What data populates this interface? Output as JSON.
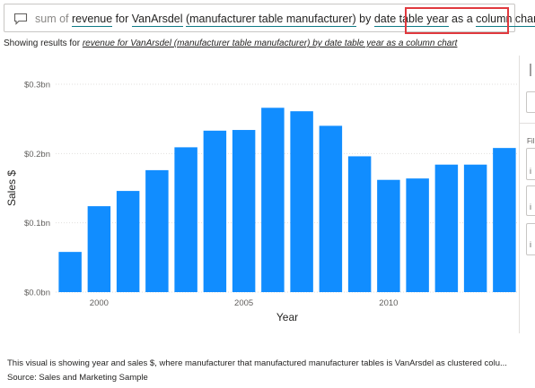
{
  "qna": {
    "tokens": [
      {
        "text": "sum of",
        "style": "muted"
      },
      {
        "text": "revenue",
        "style": "term"
      },
      {
        "text": "for",
        "style": "plain"
      },
      {
        "text": "VanArsdel",
        "style": "term"
      },
      {
        "text": "(manufacturer table manufacturer)",
        "style": "term"
      },
      {
        "text": "by",
        "style": "plain"
      },
      {
        "text": "date table year",
        "style": "term"
      },
      {
        "text": "as a",
        "style": "plain"
      },
      {
        "text": "column chart",
        "style": "term"
      }
    ],
    "icon": "chat-bubble-icon",
    "highlight_color": "#e0393e",
    "term_underline_color": "#0f7b86"
  },
  "showing": {
    "prefix": "Showing results for ",
    "link": "revenue for VanArsdel (manufacturer table manufacturer) by date table year as a column chart"
  },
  "chart_data": {
    "type": "bar",
    "x": [
      1999,
      2000,
      2001,
      2002,
      2003,
      2004,
      2005,
      2006,
      2007,
      2008,
      2009,
      2010,
      2011,
      2012,
      2013,
      2014
    ],
    "values": [
      0.058,
      0.124,
      0.146,
      0.176,
      0.209,
      0.233,
      0.234,
      0.266,
      0.261,
      0.24,
      0.196,
      0.162,
      0.164,
      0.184,
      0.184,
      0.208
    ],
    "xlabel": "Year",
    "ylabel": "Sales $",
    "ylim": [
      0,
      0.3
    ],
    "yticks": [
      0,
      0.1,
      0.2,
      0.3
    ],
    "ytick_labels": [
      "$0.0bn",
      "$0.1bn",
      "$0.2bn",
      "$0.3bn"
    ],
    "xticks": [
      2000,
      2005,
      2010
    ],
    "xtick_labels": [
      "2000",
      "2005",
      "2010"
    ],
    "bar_color": "#118dff",
    "grid": true
  },
  "right_pane": {
    "filter_icon": "filter-icon",
    "label": "Fil",
    "marks": [
      "i",
      "i",
      "i"
    ]
  },
  "footer": {
    "description": "This visual is showing year and sales $, where manufacturer that manufactured manufacturer tables is VanArsdel as clustered colu...",
    "source": "Source: Sales and Marketing Sample"
  }
}
